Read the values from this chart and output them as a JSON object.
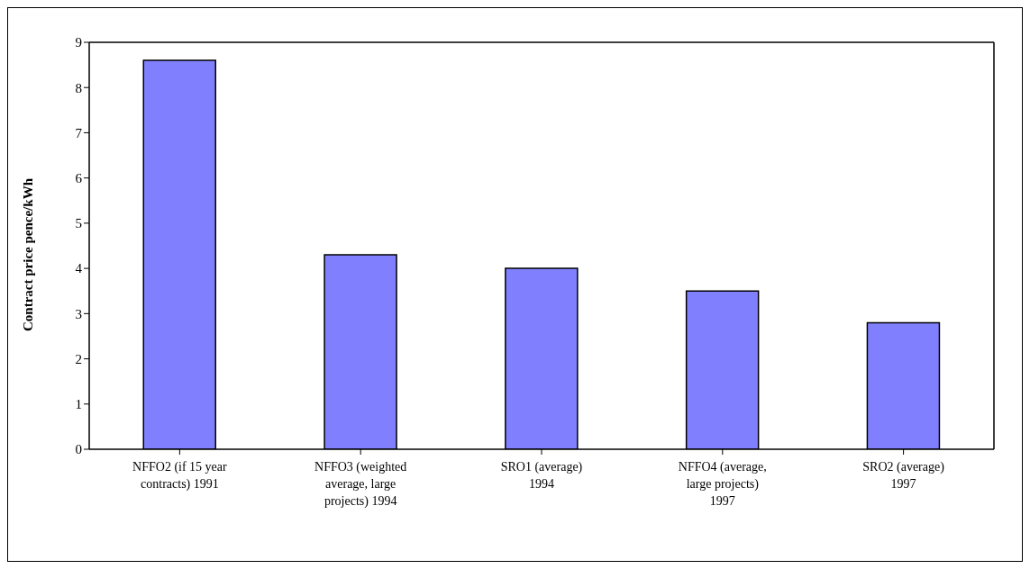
{
  "chart_data": {
    "type": "bar",
    "ylabel": "Contract price pence/kWh",
    "categories": [
      "NFFO2 (if 15 year contracts) 1991",
      "NFFO3 (weighted average, large projects) 1994",
      "SRO1 (average) 1994",
      "NFFO4 (average, large projects) 1997",
      "SRO2 (average) 1997"
    ],
    "values": [
      8.6,
      4.3,
      4.0,
      3.5,
      2.8
    ],
    "color": "#8080ff",
    "ylim": [
      0,
      9
    ],
    "yticks": [
      0,
      1,
      2,
      3,
      4,
      5,
      6,
      7,
      8,
      9
    ],
    "grid": false,
    "legend": false
  }
}
